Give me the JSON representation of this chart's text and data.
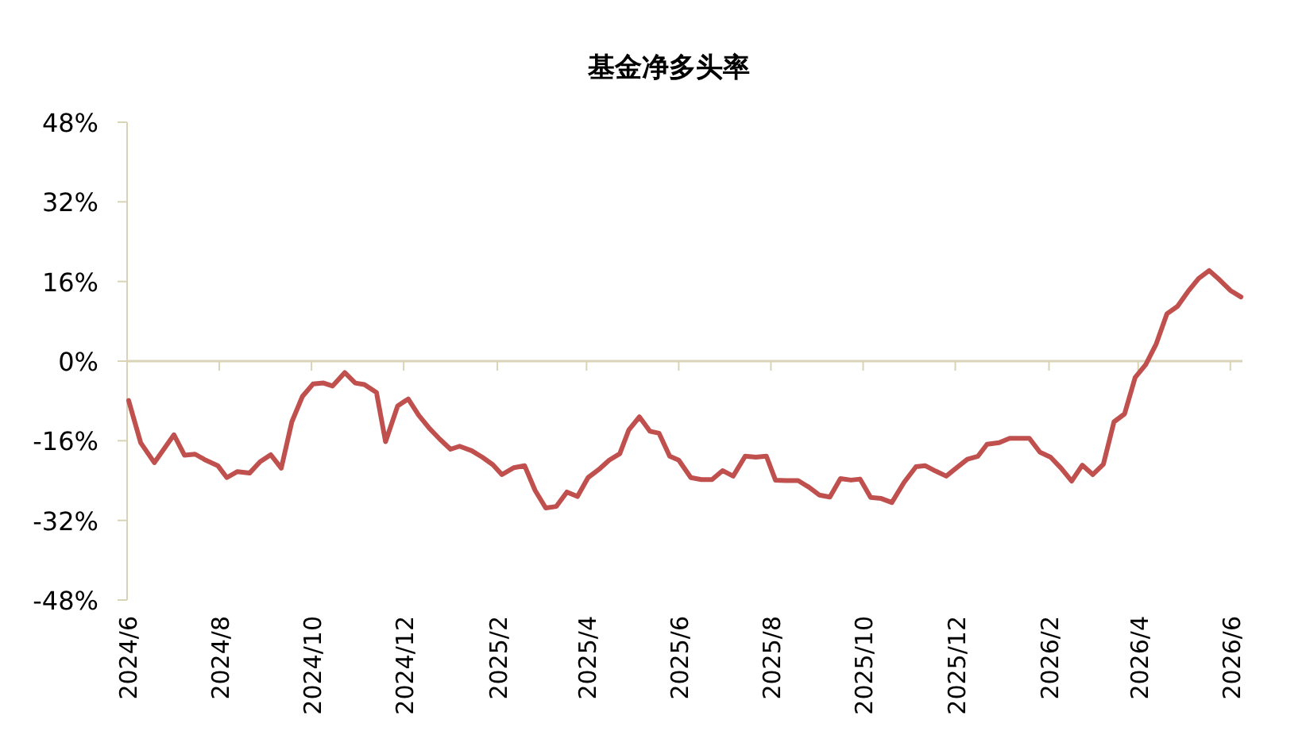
{
  "chart_data": {
    "type": "line",
    "title": "基金净多头率",
    "x": [
      "2024-06-02",
      "2024-06-05",
      "2024-06-10",
      "2024-06-19",
      "2024-07-02",
      "2024-07-09",
      "2024-07-16",
      "2024-07-23",
      "2024-07-31",
      "2024-08-06",
      "2024-08-13",
      "2024-08-21",
      "2024-08-28",
      "2024-09-04",
      "2024-09-11",
      "2024-09-18",
      "2024-09-25",
      "2024-10-02",
      "2024-10-09",
      "2024-10-15",
      "2024-10-23",
      "2024-10-30",
      "2024-11-05",
      "2024-11-13",
      "2024-11-19",
      "2024-11-27",
      "2024-12-04",
      "2024-12-11",
      "2024-12-18",
      "2024-12-25",
      "2025-01-01",
      "2025-01-07",
      "2025-01-15",
      "2025-01-22",
      "2025-01-29",
      "2025-02-04",
      "2025-02-12",
      "2025-02-19",
      "2025-02-26",
      "2025-03-05",
      "2025-03-12",
      "2025-03-19",
      "2025-03-26",
      "2025-04-02",
      "2025-04-09",
      "2025-04-16",
      "2025-04-23",
      "2025-04-29",
      "2025-05-06",
      "2025-05-13",
      "2025-05-19",
      "2025-05-26",
      "2025-06-01",
      "2025-06-09",
      "2025-06-16",
      "2025-06-23",
      "2025-06-30",
      "2025-07-07",
      "2025-07-15",
      "2025-07-22",
      "2025-07-29",
      "2025-08-04",
      "2025-08-11",
      "2025-08-19",
      "2025-08-26",
      "2025-09-02",
      "2025-09-09",
      "2025-09-16",
      "2025-09-23",
      "2025-09-29",
      "2025-10-06",
      "2025-10-13",
      "2025-10-20",
      "2025-10-28",
      "2025-11-05",
      "2025-11-11",
      "2025-11-18",
      "2025-11-25",
      "2025-12-02",
      "2025-12-09",
      "2025-12-16",
      "2025-12-22",
      "2025-12-30",
      "2026-01-06",
      "2026-01-13",
      "2026-01-19",
      "2026-01-26",
      "2026-02-02",
      "2026-02-09",
      "2026-02-16",
      "2026-02-23",
      "2026-03-02",
      "2026-03-09",
      "2026-03-16",
      "2026-03-23",
      "2026-03-30",
      "2026-04-06",
      "2026-04-13",
      "2026-04-20",
      "2026-04-27",
      "2026-05-04",
      "2026-05-11",
      "2026-05-18",
      "2026-05-25",
      "2026-06-01",
      "2026-06-08"
    ],
    "series": [
      {
        "color": "#c0504d",
        "values": [
          -7.9,
          -11.1,
          -16.4,
          -20.4,
          -14.8,
          -18.9,
          -18.7,
          -19.9,
          -21,
          -23.4,
          -22.2,
          -22.5,
          -20.2,
          -18.8,
          -21.5,
          -12.2,
          -7.1,
          -4.6,
          -4.4,
          -5,
          -2.3,
          -4.4,
          -4.7,
          -6.3,
          -16.2,
          -9,
          -7.6,
          -10.9,
          -13.5,
          -15.7,
          -17.7,
          -17.1,
          -18,
          -19.3,
          -20.8,
          -22.8,
          -21.4,
          -21,
          -26,
          -29.5,
          -29.2,
          -26.3,
          -27.2,
          -23.4,
          -21.8,
          -19.9,
          -18.6,
          -13.8,
          -11.2,
          -14.1,
          -14.5,
          -19.1,
          -19.9,
          -23.4,
          -23.8,
          -23.8,
          -22,
          -23.1,
          -19.1,
          -19.3,
          -19.1,
          -23.9,
          -24,
          -24,
          -25.3,
          -26.9,
          -27.3,
          -23.6,
          -23.9,
          -23.7,
          -27.4,
          -27.6,
          -28.4,
          -24.4,
          -21.2,
          -21,
          -22.1,
          -23.1,
          -21.4,
          -19.7,
          -19.1,
          -16.7,
          -16.4,
          -15.5,
          -15.5,
          -15.5,
          -18.3,
          -19.3,
          -21.5,
          -24.1,
          -20.9,
          -22.8,
          -20.7,
          -12.2,
          -10.6,
          -3.3,
          -0.7,
          3.5,
          9.5,
          11,
          14,
          16.6,
          18.2,
          16.3,
          14.2,
          12.9
        ]
      }
    ],
    "xlim": [
      "2024-06-01",
      "2026-06-09"
    ],
    "xticks": [
      {
        "value": "2024-06-01",
        "label": "2024/6"
      },
      {
        "value": "2024-08-01",
        "label": "2024/8"
      },
      {
        "value": "2024-10-01",
        "label": "2024/10"
      },
      {
        "value": "2024-12-01",
        "label": "2024/12"
      },
      {
        "value": "2025-02-01",
        "label": "2025/2"
      },
      {
        "value": "2025-04-01",
        "label": "2025/4"
      },
      {
        "value": "2025-06-01",
        "label": "2025/6"
      },
      {
        "value": "2025-08-01",
        "label": "2025/8"
      },
      {
        "value": "2025-10-01",
        "label": "2025/10"
      },
      {
        "value": "2025-12-01",
        "label": "2025/12"
      },
      {
        "value": "2026-02-01",
        "label": "2026/2"
      },
      {
        "value": "2026-04-01",
        "label": "2026/4"
      },
      {
        "value": "2026-06-01",
        "label": "2026/6"
      }
    ],
    "ylim": [
      -48,
      48
    ],
    "yticks": [
      {
        "value": -48,
        "label": "-48%"
      },
      {
        "value": -32,
        "label": "-32%"
      },
      {
        "value": -16,
        "label": "-16%"
      },
      {
        "value": 0,
        "label": "0%"
      },
      {
        "value": 16,
        "label": "16%"
      },
      {
        "value": 32,
        "label": "32%"
      },
      {
        "value": 48,
        "label": "48%"
      }
    ],
    "marker": "none",
    "line_style": "solid"
  }
}
